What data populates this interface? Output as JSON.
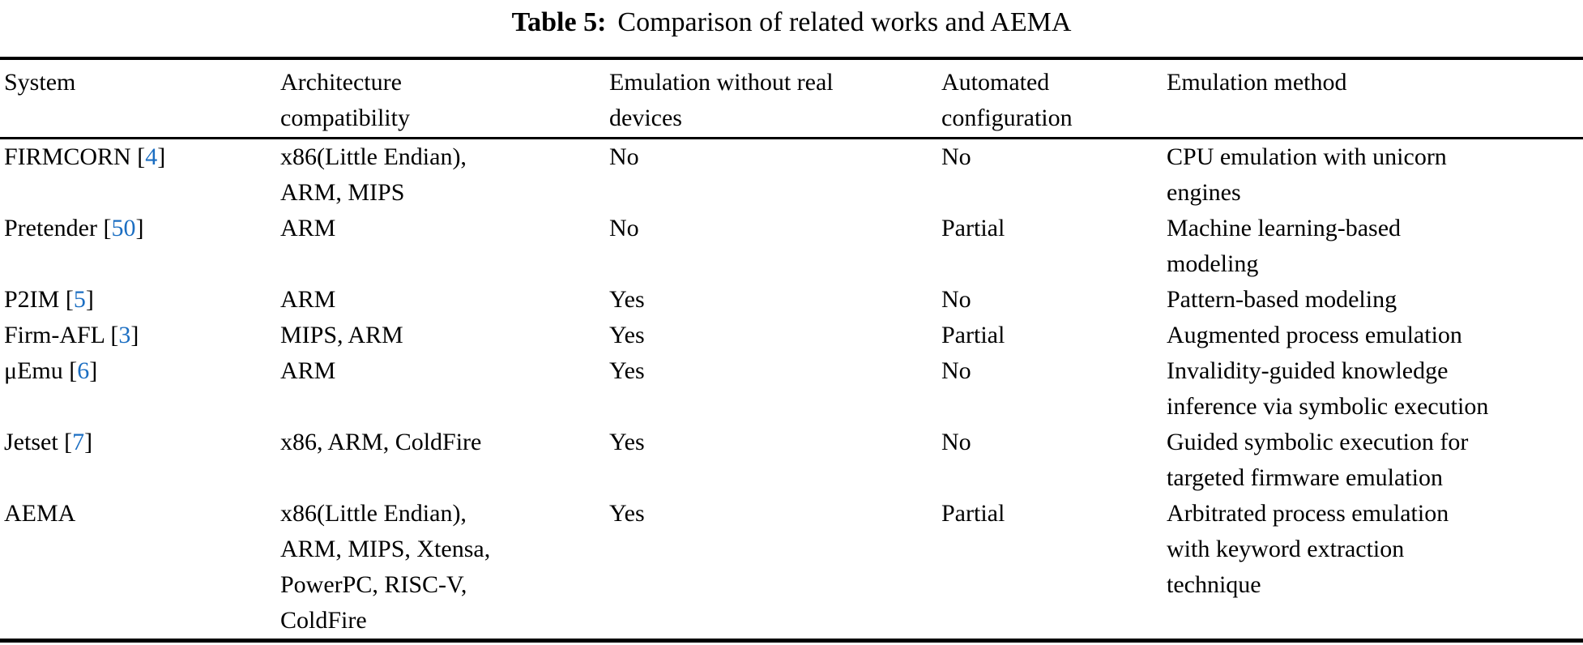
{
  "caption": {
    "label": "Table 5:",
    "text": "Comparison of related works and AEMA"
  },
  "table": {
    "columns": [
      "System",
      "Architecture\ncompatibility",
      "Emulation without real\ndevices",
      "Automated\nconfiguration",
      "Emulation method"
    ],
    "citation_brackets": [
      "[",
      "]"
    ],
    "rows": [
      {
        "system": "FIRMCORN",
        "cite": "4",
        "architecture": "x86(Little Endian),\nARM, MIPS",
        "emulation_without_devices": "No",
        "automated_configuration": "No",
        "emulation_method": "CPU emulation with unicorn\nengines"
      },
      {
        "system": "Pretender",
        "cite": "50",
        "architecture": "ARM",
        "emulation_without_devices": "No",
        "automated_configuration": "Partial",
        "emulation_method": "Machine learning-based\nmodeling"
      },
      {
        "system": "P2IM",
        "cite": "5",
        "architecture": "ARM",
        "emulation_without_devices": "Yes",
        "automated_configuration": "No",
        "emulation_method": "Pattern-based modeling"
      },
      {
        "system": "Firm-AFL",
        "cite": "3",
        "architecture": "MIPS, ARM",
        "emulation_without_devices": "Yes",
        "automated_configuration": "Partial",
        "emulation_method": "Augmented process emulation"
      },
      {
        "system": "μEmu",
        "cite": "6",
        "architecture": "ARM",
        "emulation_without_devices": "Yes",
        "automated_configuration": "No",
        "emulation_method": "Invalidity-guided knowledge\ninference via symbolic execution"
      },
      {
        "system": "Jetset",
        "cite": "7",
        "architecture": "x86, ARM, ColdFire",
        "emulation_without_devices": "Yes",
        "automated_configuration": "No",
        "emulation_method": "Guided symbolic execution for\ntargeted firmware emulation"
      },
      {
        "system": "AEMA",
        "cite": null,
        "architecture": "x86(Little Endian),\nARM, MIPS, Xtensa,\nPowerPC, RISC-V,\nColdFire",
        "emulation_without_devices": "Yes",
        "automated_configuration": "Partial",
        "emulation_method": "Arbitrated process emulation\nwith keyword extraction\ntechnique"
      }
    ]
  },
  "colors": {
    "citation_link": "#1b6ec2",
    "text": "#000000",
    "rule": "#000000"
  }
}
